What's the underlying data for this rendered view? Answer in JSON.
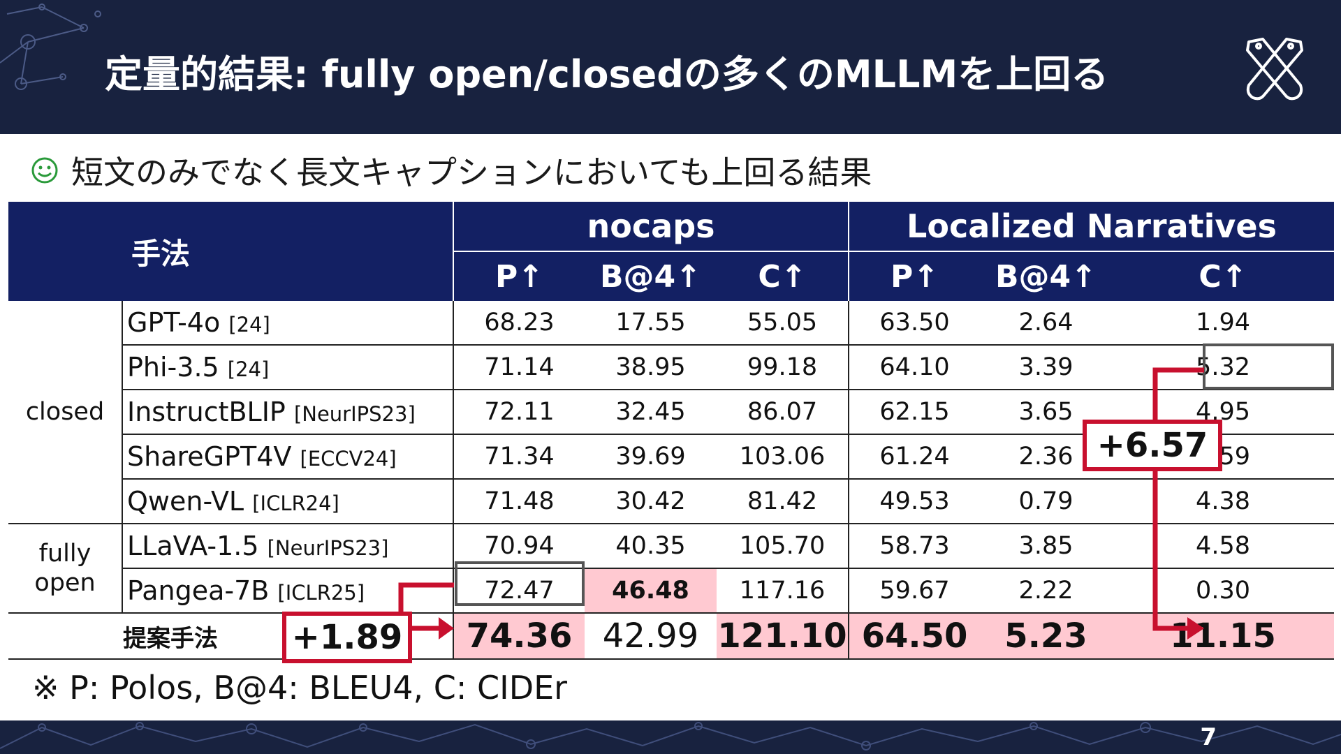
{
  "header": {
    "title": "定量的結果: fully open/closedの多くのMLLMを上回る",
    "logo_icon": "crossed-pens-logo-icon",
    "bg_color": "#18223f"
  },
  "bullet": {
    "icon": "smiley-icon",
    "icon_color": "#2a9a3a",
    "text": "短文のみでなく長文キャプションにおいても上回る結果"
  },
  "table": {
    "method_header": "手法",
    "datasets": [
      "nocaps",
      "Localized Narratives"
    ],
    "metrics": [
      "P↑",
      "B@4↑",
      "C↑",
      "P↑",
      "B@4↑",
      "C↑"
    ],
    "groups": [
      {
        "label": "closed",
        "rows": [
          {
            "name": "GPT-4o",
            "cite": "[24]",
            "values": [
              "68.23",
              "17.55",
              "55.05",
              "63.50",
              "2.64",
              "1.94"
            ]
          },
          {
            "name": "Phi-3.5",
            "cite": "[24]",
            "values": [
              "71.14",
              "38.95",
              "99.18",
              "64.10",
              "3.39",
              "5.32"
            ]
          },
          {
            "name": "InstructBLIP",
            "cite": "[NeurIPS23]",
            "values": [
              "72.11",
              "32.45",
              "86.07",
              "62.15",
              "3.65",
              "4.95"
            ]
          },
          {
            "name": "ShareGPT4V",
            "cite": "[ECCV24]",
            "values": [
              "71.34",
              "39.69",
              "103.06",
              "61.24",
              "2.36",
              "1.59"
            ]
          },
          {
            "name": "Qwen-VL",
            "cite": "[ICLR24]",
            "values": [
              "71.48",
              "30.42",
              "81.42",
              "49.53",
              "0.79",
              "4.38"
            ]
          }
        ]
      },
      {
        "label": "fully open",
        "rows": [
          {
            "name": "LLaVA-1.5",
            "cite": "[NeurIPS23]",
            "values": [
              "70.94",
              "40.35",
              "105.70",
              "58.73",
              "3.85",
              "4.58"
            ]
          },
          {
            "name": "Pangea-7B",
            "cite": "[ICLR25]",
            "values": [
              "72.47",
              "46.48",
              "117.16",
              "59.67",
              "2.22",
              "0.30"
            ]
          }
        ]
      }
    ],
    "proposed": {
      "label": "提案手法",
      "values": [
        "74.36",
        "42.99",
        "121.10",
        "64.50",
        "5.23",
        "11.15"
      ]
    },
    "highlight_color": "#ffc9d1",
    "arrow_color": "#c8102e"
  },
  "annotations": {
    "gain_nocaps": "+1.89",
    "gain_ln": "+6.57"
  },
  "footnote": "※ P: Polos, B@4: BLEU4, C: CIDEr",
  "page_number": "7"
}
